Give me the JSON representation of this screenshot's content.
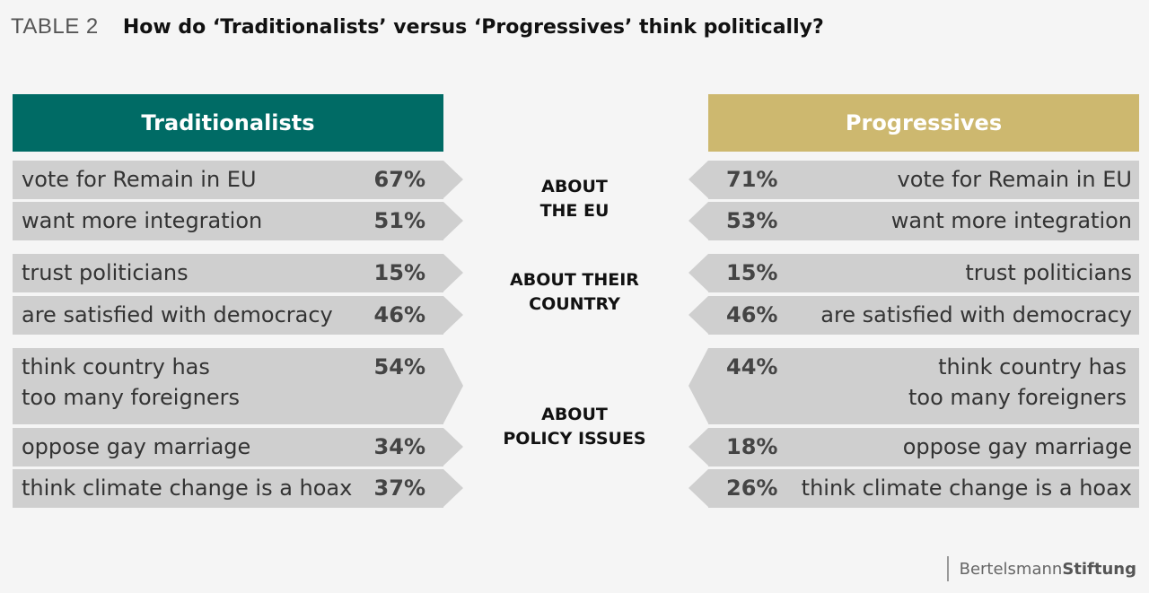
{
  "table_label": "TABLE 2",
  "title": "How do ‘Traditionalists’ versus ‘Progressives’ think politically?",
  "colors": {
    "traditionalists": "#006b65",
    "progressives": "#cdb86f",
    "row_bg": "#cfcfcf"
  },
  "chart_data": {
    "type": "table",
    "columns": [
      "Traditionalists",
      "Progressives"
    ],
    "sections": [
      {
        "heading": [
          "ABOUT",
          "THE EU"
        ],
        "rows": [
          {
            "statement": "vote for Remain in EU",
            "traditionalists": "67%",
            "progressives": "71%"
          },
          {
            "statement": "want more integration",
            "traditionalists": "51%",
            "progressives": "53%"
          }
        ]
      },
      {
        "heading": [
          "ABOUT THEIR",
          "COUNTRY"
        ],
        "rows": [
          {
            "statement": "trust politicians",
            "traditionalists": "15%",
            "progressives": "15%"
          },
          {
            "statement": "are satisfied with democracy",
            "traditionalists": "46%",
            "progressives": "46%"
          }
        ]
      },
      {
        "heading": [
          "ABOUT",
          "POLICY ISSUES"
        ],
        "rows": [
          {
            "statement": [
              "think country has",
              "too many foreigners"
            ],
            "traditionalists": "54%",
            "progressives": "44%"
          },
          {
            "statement": "oppose gay marriage",
            "traditionalists": "34%",
            "progressives": "18%"
          },
          {
            "statement": "think climate change is a hoax",
            "traditionalists": "37%",
            "progressives": "26%"
          }
        ]
      }
    ]
  },
  "brand": {
    "part1": "Bertelsmann",
    "part2": "Stiftung"
  }
}
